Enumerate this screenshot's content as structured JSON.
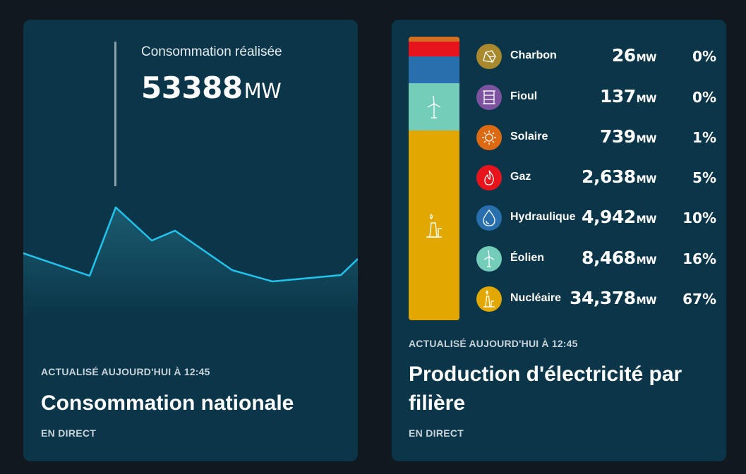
{
  "consumption": {
    "label": "Consommation réalisée",
    "value": "53388",
    "unit": "MW",
    "updated": "ACTUALISÉ AUJOURD'HUI À 12:45",
    "title": "Consommation nationale",
    "live": "EN DIRECT",
    "line_color": "#20c4ee"
  },
  "production": {
    "updated": "ACTUALISÉ AUJOURD'HUI À 12:45",
    "title_line1": "Production d'électricité par",
    "title_line2": "filière",
    "live": "EN DIRECT",
    "sources": [
      {
        "name": "Charbon",
        "value": "26",
        "unit": "MW",
        "pct": "0%",
        "color": "#a8892e",
        "icon": "coal-icon"
      },
      {
        "name": "Fioul",
        "value": "137",
        "unit": "MW",
        "pct": "0%",
        "color": "#7d53a0",
        "icon": "oil-barrel-icon"
      },
      {
        "name": "Solaire",
        "value": "739",
        "unit": "MW",
        "pct": "1%",
        "color": "#dc6a13",
        "icon": "sun-icon"
      },
      {
        "name": "Gaz",
        "value": "2,638",
        "unit": "MW",
        "pct": "5%",
        "color": "#e8141b",
        "icon": "flame-icon"
      },
      {
        "name": "Hydraulique",
        "value": "4,942",
        "unit": "MW",
        "pct": "10%",
        "color": "#2a6fad",
        "icon": "water-drop-icon"
      },
      {
        "name": "Éolien",
        "value": "8,468",
        "unit": "MW",
        "pct": "16%",
        "color": "#74cdb8",
        "icon": "wind-turbine-icon"
      },
      {
        "name": "Nucléaire",
        "value": "34,378",
        "unit": "MW",
        "pct": "67%",
        "color": "#e2a700",
        "icon": "nuclear-plant-icon"
      }
    ]
  }
}
